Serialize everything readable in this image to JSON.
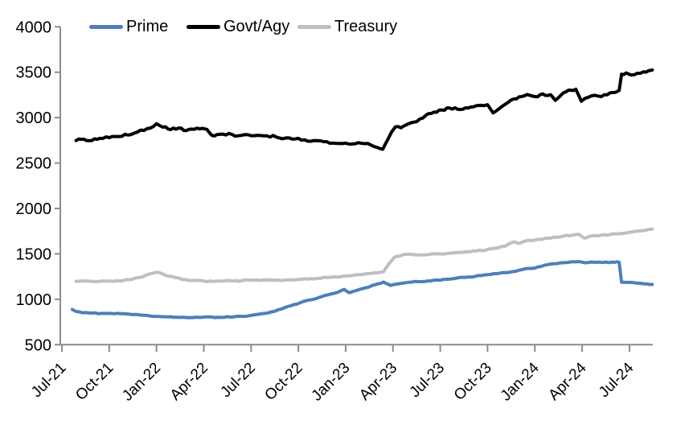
{
  "figure": {
    "background_color": "#FFFFFF",
    "axis_color": "#8C8C8C",
    "text_color": "#000000"
  },
  "chart_data": {
    "type": "line",
    "title": "",
    "xlabel": "",
    "ylabel": "",
    "ylim": [
      500,
      4000
    ],
    "y_ticks": [
      500,
      1000,
      1500,
      2000,
      2500,
      3000,
      3500,
      4000
    ],
    "x_tick_labels": [
      "Jul-21",
      "Oct-21",
      "Jan-22",
      "Apr-22",
      "Jul-22",
      "Oct-22",
      "Jan-23",
      "Apr-23",
      "Jul-23",
      "Oct-23",
      "Jan-24",
      "Apr-24",
      "Jul-24"
    ],
    "x_tick_months": [
      0,
      3,
      6,
      9,
      12,
      15,
      18,
      21,
      24,
      27,
      30,
      33,
      36
    ],
    "x_unit": "months after Jul-2021 tick",
    "grid": false,
    "legend_position": "top",
    "series": [
      {
        "name": "Prime",
        "color": "#4E7FBA",
        "points": [
          [
            0.66,
            888
          ],
          [
            0.9,
            866
          ],
          [
            1.3,
            852
          ],
          [
            1.9,
            848
          ],
          [
            2.5,
            845
          ],
          [
            3.1,
            846
          ],
          [
            3.7,
            842
          ],
          [
            4.3,
            836
          ],
          [
            4.9,
            828
          ],
          [
            5.5,
            820
          ],
          [
            6.1,
            812
          ],
          [
            6.7,
            806
          ],
          [
            7.3,
            803
          ],
          [
            7.9,
            799
          ],
          [
            8.5,
            803
          ],
          [
            9.1,
            806
          ],
          [
            9.7,
            799
          ],
          [
            10.3,
            802
          ],
          [
            10.9,
            806
          ],
          [
            11.5,
            812
          ],
          [
            12.1,
            826
          ],
          [
            12.7,
            842
          ],
          [
            13.3,
            862
          ],
          [
            13.9,
            892
          ],
          [
            14.5,
            928
          ],
          [
            15.1,
            962
          ],
          [
            15.7,
            992
          ],
          [
            16.3,
            1020
          ],
          [
            16.9,
            1050
          ],
          [
            17.5,
            1078
          ],
          [
            17.9,
            1110
          ],
          [
            18.25,
            1072
          ],
          [
            18.7,
            1098
          ],
          [
            19.3,
            1128
          ],
          [
            19.9,
            1162
          ],
          [
            20.4,
            1190
          ],
          [
            20.85,
            1152
          ],
          [
            21.4,
            1172
          ],
          [
            22.0,
            1188
          ],
          [
            22.6,
            1195
          ],
          [
            23.2,
            1202
          ],
          [
            23.8,
            1212
          ],
          [
            24.4,
            1220
          ],
          [
            25.0,
            1232
          ],
          [
            25.6,
            1242
          ],
          [
            26.2,
            1252
          ],
          [
            26.8,
            1268
          ],
          [
            27.4,
            1282
          ],
          [
            28.0,
            1295
          ],
          [
            28.6,
            1305
          ],
          [
            29.2,
            1328
          ],
          [
            29.8,
            1340
          ],
          [
            30.4,
            1362
          ],
          [
            31.0,
            1388
          ],
          [
            31.6,
            1400
          ],
          [
            32.2,
            1408
          ],
          [
            32.8,
            1415
          ],
          [
            33.2,
            1402
          ],
          [
            33.7,
            1408
          ],
          [
            34.3,
            1405
          ],
          [
            34.9,
            1410
          ],
          [
            35.35,
            1408
          ],
          [
            35.5,
            1188
          ],
          [
            35.9,
            1186
          ],
          [
            36.3,
            1182
          ],
          [
            36.7,
            1176
          ],
          [
            37.1,
            1170
          ],
          [
            37.45,
            1164
          ]
        ]
      },
      {
        "name": "Govt/Agy",
        "color": "#000000",
        "points": [
          [
            0.9,
            2748
          ],
          [
            1.4,
            2762
          ],
          [
            1.9,
            2748
          ],
          [
            2.4,
            2772
          ],
          [
            3.0,
            2780
          ],
          [
            3.6,
            2792
          ],
          [
            4.2,
            2808
          ],
          [
            4.8,
            2842
          ],
          [
            5.4,
            2878
          ],
          [
            6.0,
            2932
          ],
          [
            6.4,
            2895
          ],
          [
            6.9,
            2868
          ],
          [
            7.4,
            2885
          ],
          [
            7.9,
            2858
          ],
          [
            8.4,
            2872
          ],
          [
            8.9,
            2882
          ],
          [
            9.2,
            2870
          ],
          [
            9.5,
            2806
          ],
          [
            10.0,
            2816
          ],
          [
            10.6,
            2826
          ],
          [
            11.2,
            2800
          ],
          [
            11.8,
            2812
          ],
          [
            12.4,
            2806
          ],
          [
            13.0,
            2800
          ],
          [
            13.6,
            2786
          ],
          [
            14.2,
            2776
          ],
          [
            14.8,
            2766
          ],
          [
            15.4,
            2756
          ],
          [
            16.0,
            2748
          ],
          [
            16.6,
            2736
          ],
          [
            17.2,
            2720
          ],
          [
            17.8,
            2714
          ],
          [
            18.4,
            2710
          ],
          [
            19.0,
            2718
          ],
          [
            19.6,
            2698
          ],
          [
            20.0,
            2672
          ],
          [
            20.35,
            2652
          ],
          [
            20.9,
            2838
          ],
          [
            21.15,
            2898
          ],
          [
            21.5,
            2888
          ],
          [
            21.9,
            2925
          ],
          [
            22.3,
            2950
          ],
          [
            22.7,
            2985
          ],
          [
            23.1,
            3028
          ],
          [
            23.6,
            3062
          ],
          [
            24.1,
            3085
          ],
          [
            24.6,
            3105
          ],
          [
            25.1,
            3092
          ],
          [
            25.6,
            3108
          ],
          [
            26.1,
            3118
          ],
          [
            26.6,
            3135
          ],
          [
            27.0,
            3142
          ],
          [
            27.35,
            3052
          ],
          [
            27.9,
            3122
          ],
          [
            28.5,
            3195
          ],
          [
            29.0,
            3228
          ],
          [
            29.5,
            3255
          ],
          [
            30.0,
            3232
          ],
          [
            30.5,
            3262
          ],
          [
            31.0,
            3252
          ],
          [
            31.3,
            3190
          ],
          [
            31.8,
            3272
          ],
          [
            32.3,
            3302
          ],
          [
            32.6,
            3312
          ],
          [
            32.95,
            3180
          ],
          [
            33.4,
            3225
          ],
          [
            34.0,
            3238
          ],
          [
            34.6,
            3252
          ],
          [
            35.1,
            3278
          ],
          [
            35.35,
            3298
          ],
          [
            35.5,
            3478
          ],
          [
            35.8,
            3492
          ],
          [
            36.1,
            3470
          ],
          [
            36.5,
            3488
          ],
          [
            36.9,
            3505
          ],
          [
            37.2,
            3515
          ],
          [
            37.45,
            3525
          ]
        ]
      },
      {
        "name": "Treasury",
        "color": "#BFBFBF",
        "points": [
          [
            0.9,
            1198
          ],
          [
            1.5,
            1202
          ],
          [
            2.1,
            1196
          ],
          [
            2.7,
            1200
          ],
          [
            3.3,
            1198
          ],
          [
            3.9,
            1207
          ],
          [
            4.5,
            1222
          ],
          [
            5.1,
            1245
          ],
          [
            5.7,
            1285
          ],
          [
            6.1,
            1298
          ],
          [
            6.6,
            1262
          ],
          [
            7.2,
            1238
          ],
          [
            7.8,
            1218
          ],
          [
            8.4,
            1208
          ],
          [
            9.0,
            1200
          ],
          [
            9.6,
            1195
          ],
          [
            10.2,
            1202
          ],
          [
            10.8,
            1200
          ],
          [
            11.4,
            1205
          ],
          [
            12.0,
            1212
          ],
          [
            12.6,
            1208
          ],
          [
            13.2,
            1215
          ],
          [
            13.8,
            1210
          ],
          [
            14.4,
            1213
          ],
          [
            15.0,
            1218
          ],
          [
            15.6,
            1222
          ],
          [
            16.2,
            1230
          ],
          [
            16.8,
            1240
          ],
          [
            17.4,
            1246
          ],
          [
            18.0,
            1257
          ],
          [
            18.6,
            1268
          ],
          [
            19.2,
            1278
          ],
          [
            19.8,
            1292
          ],
          [
            20.4,
            1303
          ],
          [
            20.75,
            1392
          ],
          [
            21.1,
            1462
          ],
          [
            21.6,
            1488
          ],
          [
            22.1,
            1496
          ],
          [
            22.7,
            1488
          ],
          [
            23.3,
            1494
          ],
          [
            23.9,
            1500
          ],
          [
            24.5,
            1508
          ],
          [
            25.1,
            1515
          ],
          [
            25.7,
            1524
          ],
          [
            26.3,
            1532
          ],
          [
            26.9,
            1542
          ],
          [
            27.5,
            1562
          ],
          [
            28.1,
            1585
          ],
          [
            28.7,
            1632
          ],
          [
            29.0,
            1614
          ],
          [
            29.4,
            1642
          ],
          [
            30.0,
            1652
          ],
          [
            30.6,
            1668
          ],
          [
            31.2,
            1683
          ],
          [
            31.8,
            1695
          ],
          [
            32.4,
            1708
          ],
          [
            32.8,
            1716
          ],
          [
            33.15,
            1673
          ],
          [
            33.6,
            1697
          ],
          [
            34.2,
            1706
          ],
          [
            34.8,
            1714
          ],
          [
            35.4,
            1722
          ],
          [
            36.0,
            1737
          ],
          [
            36.6,
            1752
          ],
          [
            37.0,
            1758
          ],
          [
            37.45,
            1772
          ]
        ]
      }
    ]
  }
}
